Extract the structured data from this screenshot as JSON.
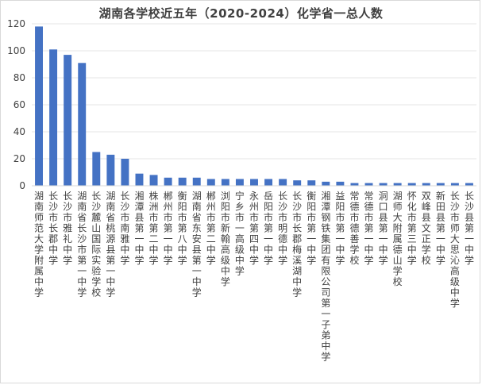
{
  "chart_data": {
    "type": "bar",
    "title": "湖南各学校近五年（2020-2024）化学省一总人数",
    "xlabel": "",
    "ylabel": "",
    "ylim": [
      0,
      120
    ],
    "yticks": [
      0,
      20,
      40,
      60,
      80,
      100,
      120
    ],
    "grid": true,
    "bar_color": "#4472C4",
    "categories": [
      "湖南师范大学附属中学",
      "长沙市长郡中学",
      "长沙市雅礼中学",
      "湖南省长沙市第一中学",
      "长沙麓山国际实验学校",
      "湖南省桃源县第一中学",
      "长沙市南雅中学",
      "湘潭县第一中学",
      "株洲市第二中学",
      "郴州市第一中学",
      "衡阳市第八中学",
      "湖南省东安县第一中学",
      "郴州市第二中学",
      "浏阳市新翰高级中学",
      "宁乡市一高级中学",
      "永州市第四中学",
      "岳阳市第一中学",
      "长沙市明德中学",
      "长沙市长郡梅溪湖中学",
      "衡阳市第一中学",
      "湘潭钢铁集团有限公司第一子弟中学",
      "益阳市第一中学",
      "常德市德善学校",
      "常德市第一中学",
      "洞口县第一中学",
      "湖师大附属德山学校",
      "怀化市第三中学",
      "双峰县文正学校",
      "新田县第一中学",
      "长沙市师大思沁高级中学",
      "长沙县第一中学"
    ],
    "values": [
      118,
      101,
      97,
      91,
      25,
      23,
      20,
      9,
      8,
      6,
      6,
      6,
      5,
      5,
      5,
      5,
      5,
      5,
      4,
      4,
      3,
      3,
      2,
      2,
      2,
      2,
      2,
      2,
      2,
      2,
      2
    ]
  }
}
